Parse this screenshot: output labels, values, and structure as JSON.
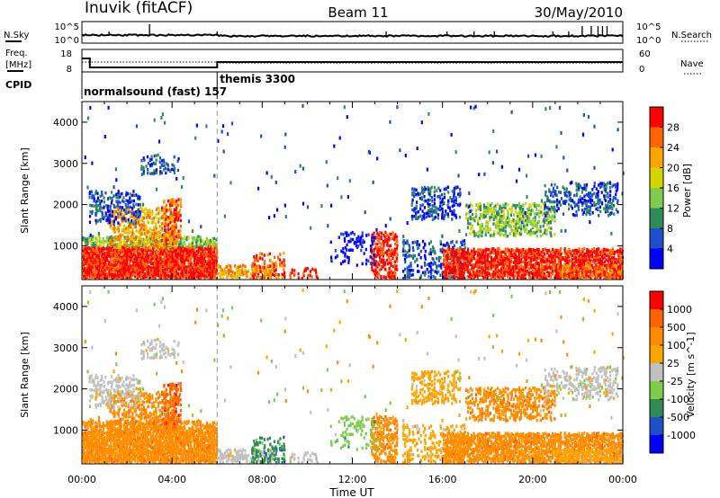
{
  "header": {
    "station": "Inuvik (fitACF)",
    "beam": "Beam 11",
    "date": "30/May/2010"
  },
  "summary_panels": {
    "nsky_label": "N.Sky",
    "nsearch_label": "N.Search",
    "freq_label_line1": "Freq.",
    "freq_label_line2": "[MHz]",
    "nave_label": "Nave",
    "cpid_label": "CPID",
    "count_ticks_left": [
      "10^5",
      "10^0"
    ],
    "count_ticks_right": [
      "10^5",
      "10^0"
    ],
    "freq_ticks": [
      "18",
      "8"
    ],
    "nave_ticks": [
      "60",
      "0"
    ],
    "cpid_modes": [
      {
        "label": "normalsound (fast) 157",
        "start_hour": 0,
        "end_hour": 6
      },
      {
        "label": "themis 3300",
        "start_hour": 6,
        "end_hour": 24
      }
    ]
  },
  "chart_data": [
    {
      "type": "heatmap",
      "quantity": "Power",
      "colorbar_label": "Power [dB]",
      "colorbar_ticks": [
        "28",
        "24",
        "20",
        "16",
        "12",
        "8",
        "4"
      ],
      "ylabel": "Slant Range [km]",
      "yticks": [
        "4000",
        "3000",
        "2000",
        "1000"
      ],
      "ylim": [
        180,
        4500
      ],
      "xlim": [
        0,
        24
      ],
      "xticks": [
        "00:00",
        "04:00",
        "08:00",
        "12:00",
        "16:00",
        "20:00",
        "00:00"
      ],
      "colors": [
        "#0000ff",
        "#1f4fc8",
        "#2e8b57",
        "#7ccd4c",
        "#d4d400",
        "#ffa500",
        "#ff6400",
        "#ff0000"
      ]
    },
    {
      "type": "heatmap",
      "quantity": "Velocity",
      "colorbar_label": "Velocity [m s^-1]",
      "colorbar_ticks": [
        "1000",
        "500",
        "100",
        "25",
        "-25",
        "-100",
        "-500",
        "-1000"
      ],
      "ylabel": "Slant Range [km]",
      "yticks": [
        "4000",
        "3000",
        "2000",
        "1000"
      ],
      "ylim": [
        180,
        4500
      ],
      "xlim": [
        0,
        24
      ],
      "xticks": [
        "00:00",
        "04:00",
        "08:00",
        "12:00",
        "16:00",
        "20:00",
        "00:00"
      ],
      "xlabel": "Time UT",
      "colors": [
        "#0000ff",
        "#1f4fc8",
        "#2e8b57",
        "#7ccd4c",
        "#c0c0c0",
        "#ffa500",
        "#ff8c00",
        "#ff6400",
        "#ff0000"
      ]
    }
  ]
}
